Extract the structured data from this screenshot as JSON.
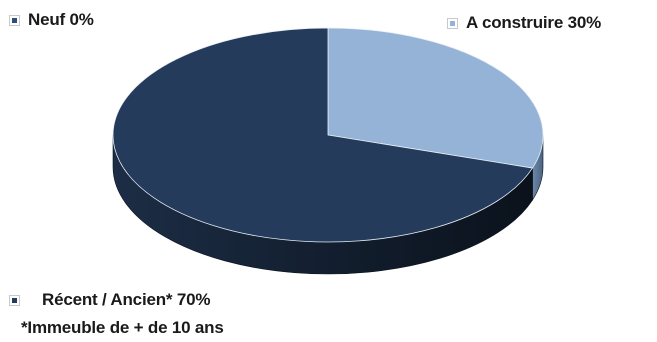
{
  "chart_data": {
    "type": "pie",
    "title": "",
    "slices": [
      {
        "label": "Neuf",
        "percent_label": "0%",
        "value": 0,
        "color": "#2f4f7a"
      },
      {
        "label": "A construire",
        "percent_label": "30%",
        "value": 30,
        "color": "#95b3d7"
      },
      {
        "label": "Récent / Ancien*",
        "percent_label": "70%",
        "value": 70,
        "color": "#243b5c"
      }
    ],
    "legend_text": {
      "neuf": "Neuf 0%",
      "construire": "A construire 30%",
      "recent": "Récent / Ancien* 70%"
    },
    "footnote": "*Immeuble de + de 10 ans",
    "style": "3d",
    "legend_placement": "around"
  }
}
